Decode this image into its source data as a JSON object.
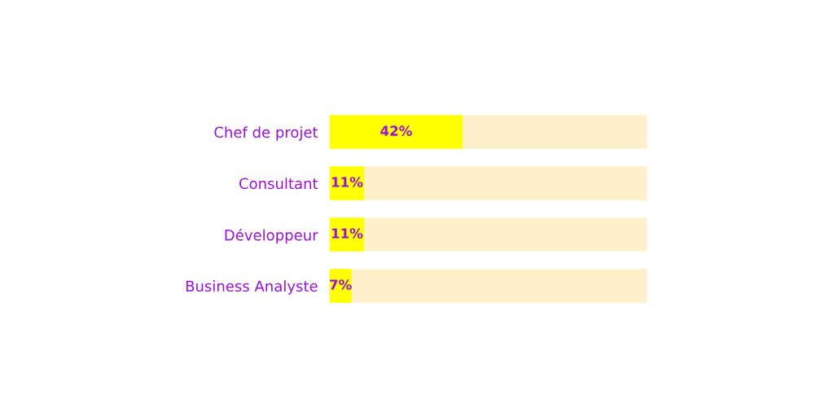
{
  "chart_data": {
    "type": "bar",
    "orientation": "horizontal",
    "stacked": true,
    "categories": [
      "Chef de projet",
      "Consultant",
      "Développeur",
      "Business Analyste"
    ],
    "series": [
      {
        "color": "#ffff00",
        "values": [
          42,
          11,
          11,
          7
        ],
        "value_labels": [
          "42%",
          "11%",
          "11%",
          "7%"
        ]
      },
      {
        "color": "#fff0cc",
        "values": [
          58,
          89,
          89,
          93
        ]
      }
    ],
    "xlim": [
      0,
      100
    ],
    "tick_labels": "y",
    "grid": false,
    "legend": false
  }
}
